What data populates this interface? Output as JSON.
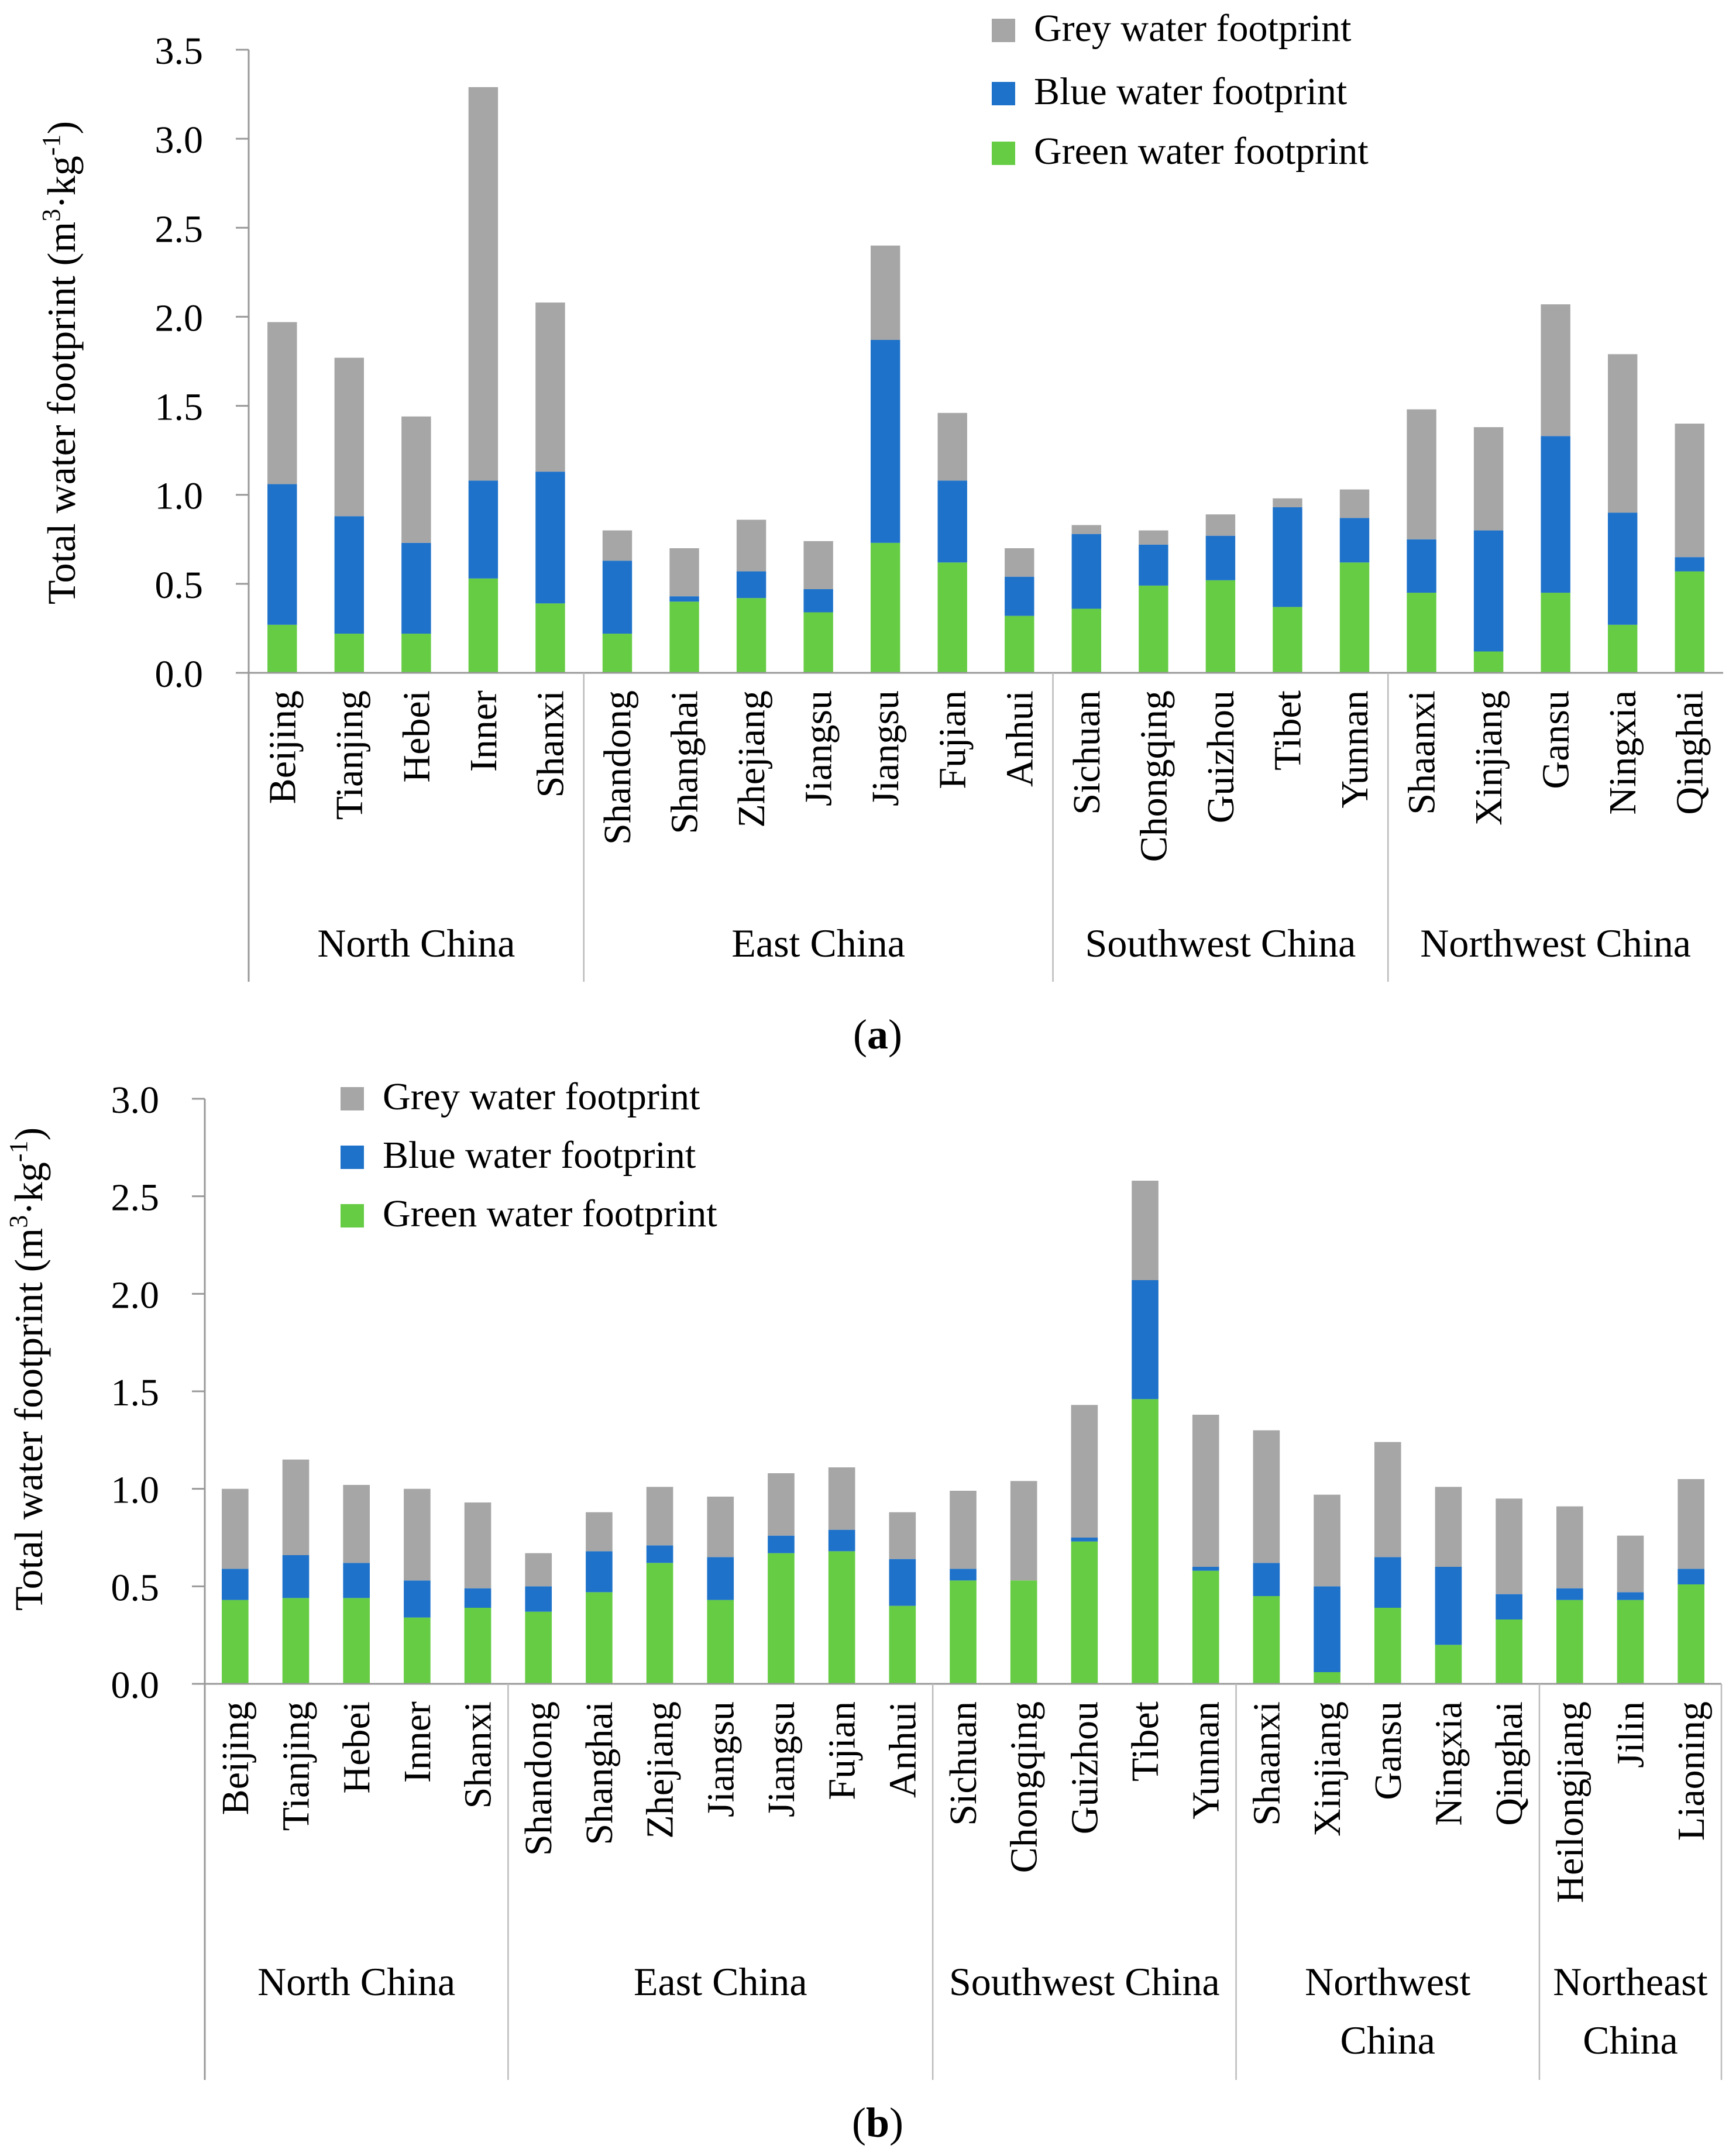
{
  "colors": {
    "grey": "#a6a6a6",
    "blue": "#1f72c9",
    "green": "#66cc44"
  },
  "chart_data": [
    {
      "panel": "a",
      "panel_label": "a",
      "type": "bar",
      "stacked": true,
      "title": "",
      "ylabel": "Total water footprint (m",
      "ylabel_sup1": "3",
      "ylabel_mid": "·kg",
      "ylabel_sup2": "-1",
      "ylabel_end": ")",
      "ylim": [
        0,
        3.5
      ],
      "yticks": [
        "0.0",
        "0.5",
        "1.0",
        "1.5",
        "2.0",
        "2.5",
        "3.0",
        "3.5"
      ],
      "legend_position": "top-right",
      "categories": [
        "Beijing",
        "Tianjing",
        "Hebei",
        "Inner",
        "Shanxi",
        "Shandong",
        "Shanghai",
        "Zhejiang",
        "Jiangsu",
        "Jiangsu",
        "Fujian",
        "Anhui",
        "Sichuan",
        "Chongqing",
        "Guizhou",
        "Tibet",
        "Yunnan",
        "Shaanxi",
        "Xinjiang",
        "Gansu",
        "Ningxia",
        "Qinghai"
      ],
      "groups": [
        {
          "lines": [
            "North China"
          ],
          "count": 5
        },
        {
          "lines": [
            "East China"
          ],
          "count": 7
        },
        {
          "lines": [
            "Southwest China"
          ],
          "count": 5
        },
        {
          "lines": [
            "Northwest China"
          ],
          "count": 5
        }
      ],
      "series": [
        {
          "name": "Green water footprint",
          "key": "green",
          "values": [
            0.27,
            0.22,
            0.22,
            0.53,
            0.39,
            0.22,
            0.4,
            0.42,
            0.34,
            0.73,
            0.62,
            0.32,
            0.36,
            0.49,
            0.52,
            0.37,
            0.62,
            0.45,
            0.12,
            0.45,
            0.27,
            0.57
          ]
        },
        {
          "name": "Blue water footprint",
          "key": "blue",
          "values": [
            0.79,
            0.66,
            0.51,
            0.55,
            0.74,
            0.41,
            0.03,
            0.15,
            0.13,
            1.14,
            0.46,
            0.22,
            0.42,
            0.23,
            0.25,
            0.56,
            0.25,
            0.3,
            0.68,
            0.88,
            0.63,
            0.08
          ]
        },
        {
          "name": "Grey water footprint",
          "key": "grey",
          "values": [
            0.91,
            0.89,
            0.71,
            2.21,
            0.95,
            0.17,
            0.27,
            0.29,
            0.27,
            0.53,
            0.38,
            0.16,
            0.05,
            0.08,
            0.12,
            0.05,
            0.16,
            0.73,
            0.58,
            0.74,
            0.89,
            0.75
          ]
        }
      ]
    },
    {
      "panel": "b",
      "panel_label": "b",
      "type": "bar",
      "stacked": true,
      "title": "",
      "ylabel": "Total water footprint (m",
      "ylabel_sup1": "3",
      "ylabel_mid": "·kg",
      "ylabel_sup2": "-1",
      "ylabel_end": ")",
      "ylim": [
        0,
        3.0
      ],
      "yticks": [
        "0.0",
        "0.5",
        "1.0",
        "1.5",
        "2.0",
        "2.5",
        "3.0"
      ],
      "legend_position": "top-left",
      "categories": [
        "Beijing",
        "Tianjing",
        "Hebei",
        "Inner",
        "Shanxi",
        "Shandong",
        "Shanghai",
        "Zhejiang",
        "Jiangsu",
        "Jiangsu",
        "Fujian",
        "Anhui",
        "Sichuan",
        "Chongqing",
        "Guizhou",
        "Tibet",
        "Yunnan",
        "Shaanxi",
        "Xinjiang",
        "Gansu",
        "Ningxia",
        "Qinghai",
        "Heilongjiang",
        "Jilin",
        "Liaoning"
      ],
      "groups": [
        {
          "lines": [
            "North China"
          ],
          "count": 5
        },
        {
          "lines": [
            "East China"
          ],
          "count": 7
        },
        {
          "lines": [
            "Southwest China"
          ],
          "count": 5
        },
        {
          "lines": [
            "Northwest",
            "China"
          ],
          "count": 5
        },
        {
          "lines": [
            "Northeast",
            "China"
          ],
          "count": 3
        }
      ],
      "series": [
        {
          "name": "Green water footprint",
          "key": "green",
          "values": [
            0.43,
            0.44,
            0.44,
            0.34,
            0.39,
            0.37,
            0.47,
            0.62,
            0.43,
            0.67,
            0.68,
            0.4,
            0.53,
            0.53,
            0.73,
            1.46,
            0.58,
            0.45,
            0.06,
            0.39,
            0.2,
            0.33,
            0.43,
            0.43,
            0.51
          ]
        },
        {
          "name": "Blue water footprint",
          "key": "blue",
          "values": [
            0.16,
            0.22,
            0.18,
            0.19,
            0.1,
            0.13,
            0.21,
            0.09,
            0.22,
            0.09,
            0.11,
            0.24,
            0.06,
            0.0,
            0.02,
            0.61,
            0.02,
            0.17,
            0.44,
            0.26,
            0.4,
            0.13,
            0.06,
            0.04,
            0.08
          ]
        },
        {
          "name": "Grey water footprint",
          "key": "grey",
          "values": [
            0.41,
            0.49,
            0.4,
            0.47,
            0.44,
            0.17,
            0.2,
            0.3,
            0.31,
            0.32,
            0.32,
            0.24,
            0.4,
            0.51,
            0.68,
            0.51,
            0.78,
            0.68,
            0.47,
            0.59,
            0.41,
            0.49,
            0.42,
            0.29,
            0.46
          ]
        }
      ]
    }
  ]
}
